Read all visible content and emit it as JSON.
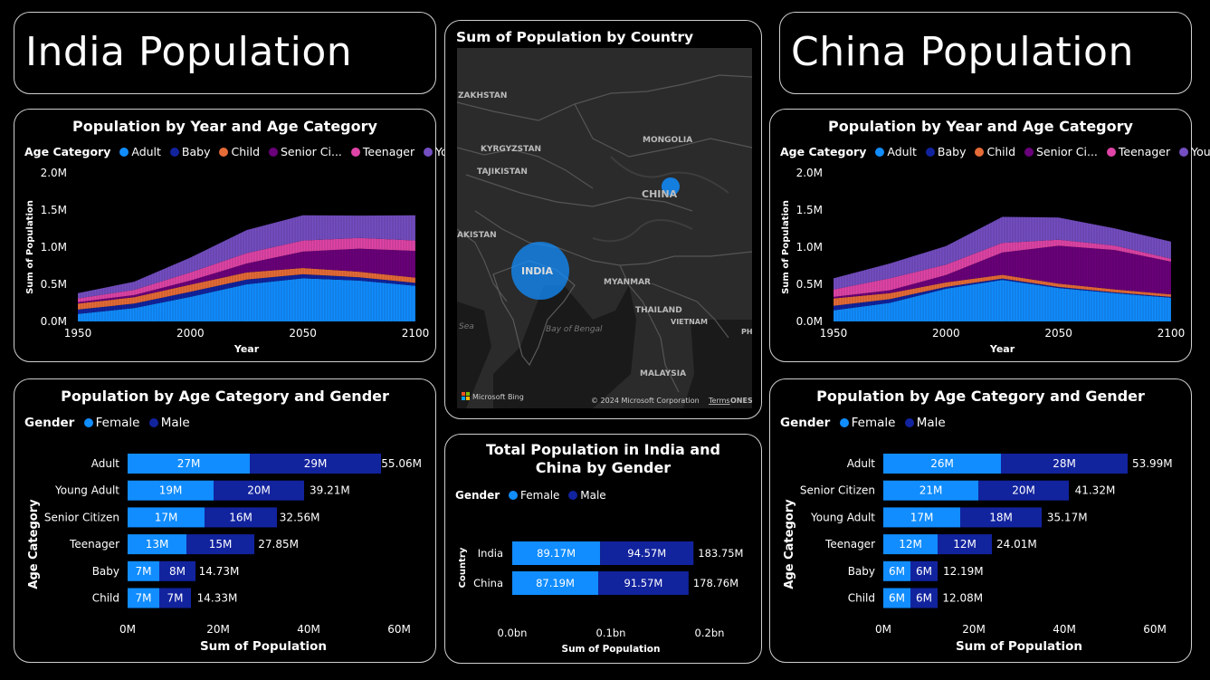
{
  "india_header": {
    "title": "India Population"
  },
  "china_header": {
    "title": "China Population"
  },
  "colors": {
    "Adult": "#118DFF",
    "Baby": "#12239E",
    "Child": "#E66C37",
    "Senior Citizen": "#6B007B",
    "Teenager": "#E044A7",
    "Young Adult": "#744EC2",
    "Female": "#118DFF",
    "Male": "#12239E"
  },
  "age_legend": {
    "title": "Age Category",
    "items": [
      "Adult",
      "Baby",
      "Child",
      "Senior Ci...",
      "Teenager",
      "Young A..."
    ]
  },
  "gender_legend": {
    "title": "Gender",
    "items": [
      "Female",
      "Male"
    ]
  },
  "map": {
    "title": "Sum of Population by Country",
    "labels": [
      "ZAKHSTAN",
      "MONGOLIA",
      "KYRGYZSTAN",
      "TAJIKISTAN",
      "CHINA",
      "AKISTAN",
      "INDIA",
      "MYANMAR",
      "THAILAND",
      "VIETNAM",
      "Bay of Bengal",
      "Sea",
      "MALAYSIA",
      "PH",
      "ONES"
    ],
    "bing": "Microsoft Bing",
    "copyright": "© 2024 Microsoft Corporation",
    "terms": "Terms"
  },
  "chart_data": [
    {
      "id": "india_area",
      "type": "area",
      "title": "Population by Year and Age Category",
      "xlabel": "Year",
      "ylabel": "Sum of Population",
      "x": [
        1950,
        1975,
        2000,
        2025,
        2050,
        2075,
        2100
      ],
      "xticks": [
        "1950",
        "2000",
        "2050",
        "2100"
      ],
      "yticks": [
        "0.0M",
        "0.5M",
        "1.0M",
        "1.5M",
        "2.0M"
      ],
      "ylim": [
        0,
        2000000
      ],
      "series": [
        {
          "name": "Adult",
          "values": [
            100000,
            180000,
            330000,
            500000,
            580000,
            550000,
            480000
          ]
        },
        {
          "name": "Baby",
          "values": [
            60000,
            60000,
            70000,
            65000,
            55000,
            45000,
            40000
          ]
        },
        {
          "name": "Child",
          "values": [
            80000,
            85000,
            95000,
            95000,
            85000,
            75000,
            70000
          ]
        },
        {
          "name": "Senior Citizen",
          "values": [
            20000,
            30000,
            55000,
            120000,
            220000,
            310000,
            360000
          ]
        },
        {
          "name": "Teenager",
          "values": [
            50000,
            70000,
            110000,
            140000,
            150000,
            145000,
            140000
          ]
        },
        {
          "name": "Young Adult",
          "values": [
            70000,
            110000,
            200000,
            310000,
            340000,
            300000,
            340000
          ]
        }
      ]
    },
    {
      "id": "china_area",
      "type": "area",
      "title": "Population by Year and Age Category",
      "xlabel": "Year",
      "ylabel": "Sum of Population",
      "x": [
        1950,
        1975,
        2000,
        2025,
        2050,
        2075,
        2100
      ],
      "xticks": [
        "1950",
        "2000",
        "2050",
        "2100"
      ],
      "yticks": [
        "0.0M",
        "0.5M",
        "1.0M",
        "1.5M",
        "2.0M"
      ],
      "ylim": [
        0,
        2000000
      ],
      "series": [
        {
          "name": "Adult",
          "values": [
            150000,
            250000,
            440000,
            560000,
            450000,
            380000,
            320000
          ]
        },
        {
          "name": "Baby",
          "values": [
            60000,
            50000,
            25000,
            18000,
            15000,
            12000,
            10000
          ]
        },
        {
          "name": "Child",
          "values": [
            100000,
            80000,
            60000,
            50000,
            45000,
            40000,
            35000
          ]
        },
        {
          "name": "Senior Citizen",
          "values": [
            20000,
            40000,
            100000,
            300000,
            510000,
            530000,
            440000
          ]
        },
        {
          "name": "Teenager",
          "values": [
            100000,
            160000,
            140000,
            130000,
            80000,
            60000,
            40000
          ]
        },
        {
          "name": "Young Adult",
          "values": [
            150000,
            200000,
            250000,
            350000,
            300000,
            230000,
            230000
          ]
        }
      ]
    },
    {
      "id": "india_bar",
      "type": "bar",
      "title": "Population by Age Category and Gender",
      "xlabel": "Sum of Population",
      "ylabel": "Age Category",
      "xticks": [
        "0M",
        "20M",
        "40M",
        "60M"
      ],
      "xlim": [
        0,
        60
      ],
      "categories": [
        "Adult",
        "Young Adult",
        "Senior Citizen",
        "Teenager",
        "Baby",
        "Child"
      ],
      "series": [
        {
          "name": "Female",
          "values": [
            27,
            19,
            17,
            13,
            7,
            7
          ],
          "labels": [
            "27M",
            "19M",
            "17M",
            "13M",
            "7M",
            "7M"
          ]
        },
        {
          "name": "Male",
          "values": [
            29,
            20,
            16,
            15,
            8,
            7
          ],
          "labels": [
            "29M",
            "20M",
            "16M",
            "15M",
            "8M",
            "7M"
          ]
        }
      ],
      "totals": [
        "55.06M",
        "39.21M",
        "32.56M",
        "27.85M",
        "14.73M",
        "14.33M"
      ],
      "total_values": [
        55.06,
        39.21,
        32.56,
        27.85,
        14.73,
        14.33
      ]
    },
    {
      "id": "china_bar",
      "type": "bar",
      "title": "Population by Age Category and Gender",
      "xlabel": "Sum of Population",
      "ylabel": "Age Category",
      "xticks": [
        "0M",
        "20M",
        "40M",
        "60M"
      ],
      "xlim": [
        0,
        60
      ],
      "categories": [
        "Adult",
        "Senior Citizen",
        "Young Adult",
        "Teenager",
        "Baby",
        "Child"
      ],
      "series": [
        {
          "name": "Female",
          "values": [
            26,
            21,
            17,
            12,
            6,
            6
          ],
          "labels": [
            "26M",
            "21M",
            "17M",
            "12M",
            "6M",
            "6M"
          ]
        },
        {
          "name": "Male",
          "values": [
            28,
            20,
            18,
            12,
            6,
            6
          ],
          "labels": [
            "28M",
            "20M",
            "18M",
            "12M",
            "6M",
            "6M"
          ]
        }
      ],
      "totals": [
        "53.99M",
        "41.32M",
        "35.17M",
        "24.01M",
        "12.19M",
        "12.08M"
      ],
      "total_values": [
        53.99,
        41.32,
        35.17,
        24.01,
        12.19,
        12.08
      ]
    },
    {
      "id": "total_bar",
      "type": "bar",
      "title": "Total Population in India and China by Gender",
      "xlabel": "Sum of Population",
      "ylabel": "Country",
      "xticks": [
        "0.0bn",
        "0.1bn",
        "0.2bn"
      ],
      "xlim": [
        0,
        0.2
      ],
      "categories": [
        "India",
        "China"
      ],
      "series": [
        {
          "name": "Female",
          "values": [
            0.08917,
            0.08719
          ],
          "labels": [
            "89.17M",
            "87.19M"
          ]
        },
        {
          "name": "Male",
          "values": [
            0.09457,
            0.09157
          ],
          "labels": [
            "94.57M",
            "91.57M"
          ]
        }
      ],
      "totals": [
        "183.75M",
        "178.76M"
      ],
      "total_values": [
        0.18375,
        0.17876
      ]
    }
  ]
}
